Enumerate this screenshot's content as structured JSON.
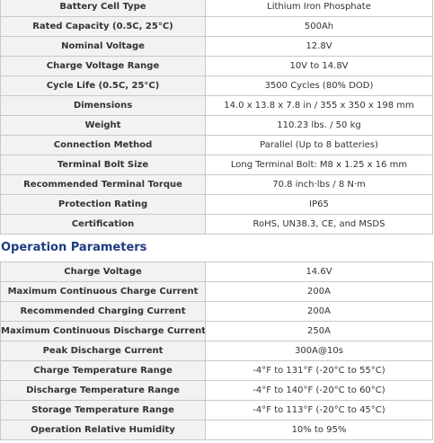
{
  "sections": [
    {
      "rows": [
        [
          "Battery Cell Type",
          "Lithium Iron Phosphate"
        ],
        [
          "Rated Capacity (0.5C, 25°C)",
          "500Ah"
        ],
        [
          "Nominal Voltage",
          "12.8V"
        ],
        [
          "Charge Voltage Range",
          "10V to 14.8V"
        ],
        [
          "Cycle Life (0.5C, 25°C)",
          "3500 Cycles (80% DOD)"
        ],
        [
          "Dimensions",
          "14.0 x 13.8 x 7.8 in / 355 x 350 x 198 mm"
        ],
        [
          "Weight",
          "110.23 lbs. / 50 kg"
        ],
        [
          "Connection Method",
          "Parallel (Up to 8 batteries)"
        ],
        [
          "Terminal Bolt Size",
          "Long Terminal Bolt: M8 x 1.25 x 16 mm"
        ],
        [
          "Recommended Terminal Torque",
          "70.8 inch·lbs / 8 N·m"
        ],
        [
          "Protection Rating",
          "IP65"
        ],
        [
          "Certification",
          "RoHS, UN38.3, CE, and MSDS"
        ]
      ]
    },
    {
      "title": "Operation Parameters",
      "rows": [
        [
          "Charge Voltage",
          "14.6V"
        ],
        [
          "Maximum Continuous Charge Current",
          "200A"
        ],
        [
          "Recommended Charging Current",
          "200A"
        ],
        [
          "Maximum Continuous Discharge Current",
          "250A"
        ],
        [
          "Peak Discharge Current",
          "300A@10s"
        ],
        [
          "Charge Temperature Range",
          "-4°F to 131°F (-20°C to 55°C)"
        ],
        [
          "Discharge Temperature Range",
          "-4°F to 140°F (-20°C to 60°C)"
        ],
        [
          "Storage Temperature Range",
          "-4°F to 113°F (-20°C to 45°C)"
        ],
        [
          "Operation Relative Humidity",
          "10% to 95%"
        ]
      ]
    }
  ]
}
